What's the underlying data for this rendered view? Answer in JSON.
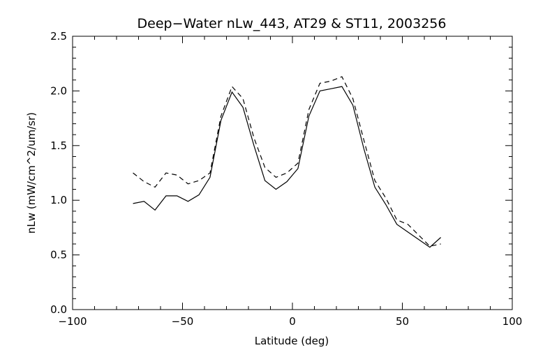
{
  "chart_data": {
    "type": "line",
    "title": "Deep−Water nLw_443, AT29 & ST11, 2003256",
    "xlabel": "Latitude (deg)",
    "ylabel": "nLw (mW/cm^2/um/sr)",
    "xlim": [
      -100,
      100
    ],
    "ylim": [
      0.0,
      2.5
    ],
    "x_major_ticks": [
      -100,
      -50,
      0,
      50,
      100
    ],
    "x_tick_labels": [
      "−100",
      "−50",
      "0",
      "50",
      "100"
    ],
    "y_major_ticks": [
      0.0,
      0.5,
      1.0,
      1.5,
      2.0,
      2.5
    ],
    "y_tick_labels": [
      "0.0",
      "0.5",
      "1.0",
      "1.5",
      "2.0",
      "2.5"
    ],
    "grid": false,
    "legend": "none",
    "series": [
      {
        "style": "solid",
        "color": "#000000",
        "x": [
          -72.5,
          -67.5,
          -62.5,
          -57.5,
          -52.5,
          -47.5,
          -42.5,
          -37.5,
          -32.5,
          -27.5,
          -22.5,
          -17.5,
          -12.5,
          -7.5,
          -2.5,
          2.5,
          7.5,
          12.5,
          17.5,
          22.5,
          27.5,
          32.5,
          37.5,
          42.5,
          47.5,
          52.5,
          57.5,
          62.5,
          67.5
        ],
        "y": [
          0.97,
          0.99,
          0.91,
          1.04,
          1.04,
          0.99,
          1.05,
          1.21,
          1.73,
          1.99,
          1.85,
          1.5,
          1.18,
          1.1,
          1.17,
          1.29,
          1.77,
          2.0,
          2.02,
          2.04,
          1.87,
          1.47,
          1.12,
          0.96,
          0.78,
          0.71,
          0.64,
          0.57,
          0.66
        ]
      },
      {
        "style": "dashed",
        "color": "#000000",
        "x": [
          -72.5,
          -67.5,
          -62.5,
          -57.5,
          -52.5,
          -47.5,
          -42.5,
          -37.5,
          -32.5,
          -27.5,
          -22.5,
          -17.5,
          -12.5,
          -7.5,
          -2.5,
          2.5,
          7.5,
          12.5,
          17.5,
          22.5,
          27.5,
          32.5,
          37.5,
          42.5,
          47.5,
          52.5,
          57.5,
          62.5,
          67.5
        ],
        "y": [
          1.25,
          1.17,
          1.12,
          1.25,
          1.23,
          1.15,
          1.18,
          1.25,
          1.77,
          2.04,
          1.93,
          1.57,
          1.3,
          1.21,
          1.25,
          1.34,
          1.83,
          2.07,
          2.09,
          2.13,
          1.93,
          1.55,
          1.18,
          1.02,
          0.82,
          0.78,
          0.68,
          0.58,
          0.6
        ]
      }
    ]
  }
}
